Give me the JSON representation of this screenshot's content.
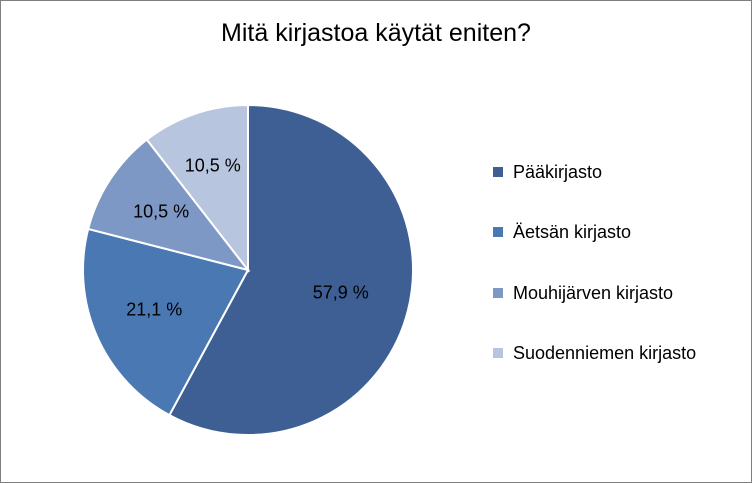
{
  "chart_data": {
    "type": "pie",
    "title": "Mitä kirjastoa käytät eniten?",
    "categories": [
      "Pääkirjasto",
      "Äetsän kirjasto",
      "Mouhijärven kirjasto",
      "Suodenniemen kirjasto"
    ],
    "values": [
      57.9,
      21.1,
      10.5,
      10.5
    ],
    "data_labels": [
      "57,9 %",
      "21,1 %",
      "10,5 %",
      "10,5 %"
    ],
    "colors": [
      "#3d5f93",
      "#4a78b2",
      "#7e98c5",
      "#b8c5de"
    ],
    "legend_position": "right",
    "start_angle_deg": 0,
    "direction": "clockwise"
  }
}
